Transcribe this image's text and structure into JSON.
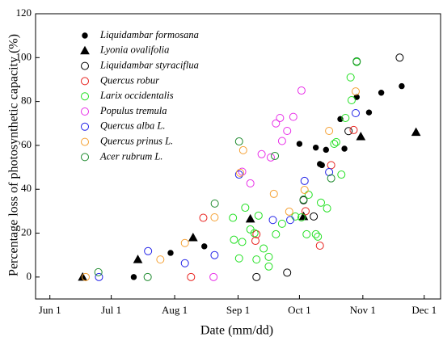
{
  "chart_data": {
    "type": "scatter",
    "x_label": "Date (mm/dd)",
    "y_label": "Percentage loss of photosynthetic capacity (%)",
    "xlim": [
      145,
      343
    ],
    "ylim": [
      -10,
      120
    ],
    "xticks": [
      {
        "value": 152,
        "label": "Jun 1"
      },
      {
        "value": 182,
        "label": "Jul 1"
      },
      {
        "value": 213,
        "label": "Aug 1"
      },
      {
        "value": 244,
        "label": "Sep 1"
      },
      {
        "value": 274,
        "label": "Oct 1"
      },
      {
        "value": 305,
        "label": "Nov 1"
      },
      {
        "value": 335,
        "label": "Dec 1"
      }
    ],
    "yticks": [
      0,
      20,
      40,
      60,
      80,
      100,
      120
    ],
    "legend": "upper left",
    "series": [
      {
        "name": "Liquidambar formosana",
        "color": "#000000",
        "marker": "circle",
        "filled": true,
        "x": [
          193,
          211,
          227.5,
          274,
          282,
          284,
          285,
          287,
          294,
          296,
          302,
          308,
          314,
          324
        ],
        "values": [
          0,
          11,
          14,
          60.7,
          59,
          51.5,
          51,
          58,
          72,
          58.5,
          82,
          75,
          84,
          87
        ]
      },
      {
        "name": "Lyonia ovalifolia",
        "color": "#000000",
        "marker": "triangle",
        "filled": true,
        "x": [
          168,
          195,
          222,
          250,
          276,
          304,
          331
        ],
        "values": [
          0,
          8,
          18,
          26.5,
          27.6,
          64,
          66
        ]
      },
      {
        "name": "Liquidambar styraciflua",
        "color": "#000000",
        "marker": "circle",
        "filled": false,
        "x": [
          253,
          268,
          276,
          281,
          298,
          323
        ],
        "values": [
          0,
          2,
          35,
          27.6,
          66.5,
          100
        ]
      },
      {
        "name": "Quercus robur",
        "color": "#e8221e",
        "marker": "circle",
        "filled": false,
        "x": [
          221,
          227,
          253,
          252.5,
          277,
          284,
          289.5,
          300.5
        ],
        "values": [
          0,
          27,
          19.5,
          16.5,
          30,
          14.3,
          51,
          67
        ]
      },
      {
        "name": "Larix occidentalis",
        "color": "#22e022",
        "marker": "circle",
        "filled": false,
        "x": [
          242,
          241.5,
          244.5,
          246,
          247.5,
          250,
          252,
          253,
          254,
          256.5,
          259,
          259,
          262.5,
          265.5,
          272,
          275,
          277.5,
          278.5,
          282,
          283,
          284.5,
          287.5,
          291,
          292,
          294.5,
          296.5,
          299,
          299.5,
          302
        ],
        "values": [
          17,
          27,
          8.5,
          16,
          31.6,
          21.7,
          20,
          8,
          28,
          13,
          9.2,
          4.8,
          19.5,
          24.3,
          27.6,
          27.2,
          19.5,
          37.5,
          19.5,
          18.4,
          33.9,
          31.3,
          60.7,
          61.5,
          46.7,
          72.5,
          91,
          80.6,
          98
        ]
      },
      {
        "name": "Populus tremula",
        "color": "#e82ee8",
        "marker": "circle",
        "filled": false,
        "x": [
          232,
          246,
          250,
          255.5,
          260,
          262.5,
          264.5,
          265.5,
          268,
          271,
          275
        ],
        "values": [
          0,
          48,
          42.7,
          56,
          54.5,
          70,
          72.5,
          62,
          66.6,
          73,
          85
        ]
      },
      {
        "name": "Quercus alba L.",
        "color": "#2222e8",
        "marker": "circle",
        "filled": false,
        "x": [
          176,
          200,
          218,
          232.5,
          244.5,
          261,
          269.5,
          276.5,
          288.5,
          301.5
        ],
        "values": [
          0,
          11.8,
          6.3,
          10,
          46.7,
          26,
          26,
          43.8,
          47.8,
          74.7
        ]
      },
      {
        "name": "Quercus prinus L.",
        "color": "#f5a032",
        "marker": "circle",
        "filled": false,
        "x": [
          169.5,
          206,
          218,
          232.5,
          245,
          246.5,
          261.5,
          269,
          276.5,
          288.5,
          301.5
        ],
        "values": [
          0,
          8,
          15.5,
          27.2,
          47.5,
          57.8,
          37.9,
          29.8,
          39.7,
          66.6,
          84.6
        ]
      },
      {
        "name": "Acer rubrum L.",
        "color": "#1e8a2e",
        "marker": "circle",
        "filled": false,
        "x": [
          175.7,
          199.8,
          232.6,
          244.5,
          262,
          276,
          289.5,
          302
        ],
        "values": [
          2.2,
          0,
          33.5,
          61.8,
          55.2,
          35.3,
          45,
          98.3
        ]
      }
    ]
  }
}
